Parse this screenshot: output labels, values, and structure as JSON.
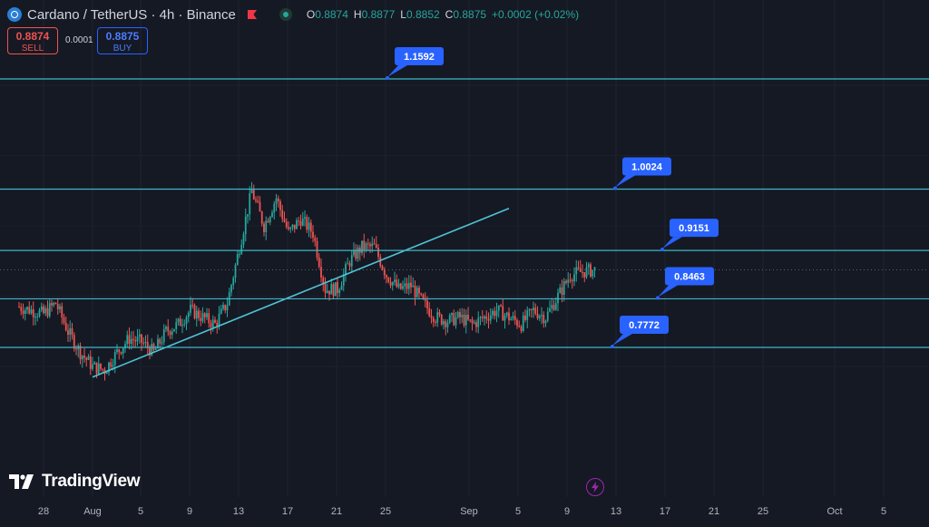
{
  "header": {
    "symbol_title": "Cardano / TetherUS · 4h · Binance",
    "ohlc": [
      {
        "key": "O",
        "value": "0.8874"
      },
      {
        "key": "H",
        "value": "0.8877"
      },
      {
        "key": "L",
        "value": "0.8852"
      },
      {
        "key": "C",
        "value": "0.8875"
      },
      {
        "key": "",
        "value": "+0.0002 (+0.02%)"
      }
    ]
  },
  "trade": {
    "sell_price": "0.8874",
    "sell_label": "SELL",
    "spread": "0.0001",
    "buy_price": "0.8875",
    "buy_label": "BUY"
  },
  "branding": {
    "logo_text": "TradingView"
  },
  "colors": {
    "background": "#151924",
    "up": "#26a69a",
    "down": "#ef5350",
    "level_line": "#3fb6c8",
    "trendline": "#4fc3d6",
    "label_bg": "#2962ff"
  },
  "chart_data": {
    "type": "candlestick",
    "interval": "4h",
    "ylim": [
      0.7,
      1.2
    ],
    "x_ticks": [
      "28",
      "Aug",
      "5",
      "9",
      "13",
      "17",
      "21",
      "25",
      "Sep",
      "5",
      "9",
      "13",
      "17",
      "21",
      "25",
      "Oct",
      "5"
    ],
    "levels": [
      1.1592,
      1.0024,
      0.9151,
      0.8463,
      0.7772
    ],
    "level_labels": [
      "1.1592",
      "1.0024",
      "0.9151",
      "0.8463",
      "0.7772"
    ],
    "trendline": {
      "from": {
        "date": "Aug 1",
        "price": 0.735
      },
      "to": {
        "date": "Sep 4",
        "price": 0.975
      }
    },
    "current_price": 0.8875,
    "price_path": [
      [
        "Jul 26",
        0.835
      ],
      [
        "Jul 28",
        0.825
      ],
      [
        "Jul 29",
        0.84
      ],
      [
        "Jul 30",
        0.8
      ],
      [
        "Jul 31",
        0.77
      ],
      [
        "Aug 1",
        0.75
      ],
      [
        "Aug 2",
        0.745
      ],
      [
        "Aug 3",
        0.77
      ],
      [
        "Aug 4",
        0.79
      ],
      [
        "Aug 5",
        0.785
      ],
      [
        "Aug 6",
        0.77
      ],
      [
        "Aug 7",
        0.8
      ],
      [
        "Aug 8",
        0.81
      ],
      [
        "Aug 9",
        0.83
      ],
      [
        "Aug 10",
        0.82
      ],
      [
        "Aug 11",
        0.81
      ],
      [
        "Aug 12",
        0.84
      ],
      [
        "Aug 13",
        0.92
      ],
      [
        "Aug 14",
        1.0
      ],
      [
        "Aug 15",
        0.95
      ],
      [
        "Aug 16",
        0.99
      ],
      [
        "Aug 17",
        0.94
      ],
      [
        "Aug 18",
        0.96
      ],
      [
        "Aug 19",
        0.94
      ],
      [
        "Aug 20",
        0.86
      ],
      [
        "Aug 21",
        0.86
      ],
      [
        "Aug 22",
        0.9
      ],
      [
        "Aug 23",
        0.92
      ],
      [
        "Aug 24",
        0.92
      ],
      [
        "Aug 25",
        0.88
      ],
      [
        "Aug 26",
        0.86
      ],
      [
        "Aug 27",
        0.865
      ],
      [
        "Aug 28",
        0.84
      ],
      [
        "Aug 29",
        0.82
      ],
      [
        "Aug 30",
        0.815
      ],
      [
        "Aug 31",
        0.82
      ],
      [
        "Sep 1",
        0.81
      ],
      [
        "Sep 2",
        0.82
      ],
      [
        "Sep 3",
        0.83
      ],
      [
        "Sep 4",
        0.82
      ],
      [
        "Sep 5",
        0.81
      ],
      [
        "Sep 6",
        0.83
      ],
      [
        "Sep 7",
        0.82
      ],
      [
        "Sep 8",
        0.85
      ],
      [
        "Sep 9",
        0.88
      ],
      [
        "Sep 10",
        0.885
      ],
      [
        "Sep 11",
        0.8875
      ]
    ]
  }
}
